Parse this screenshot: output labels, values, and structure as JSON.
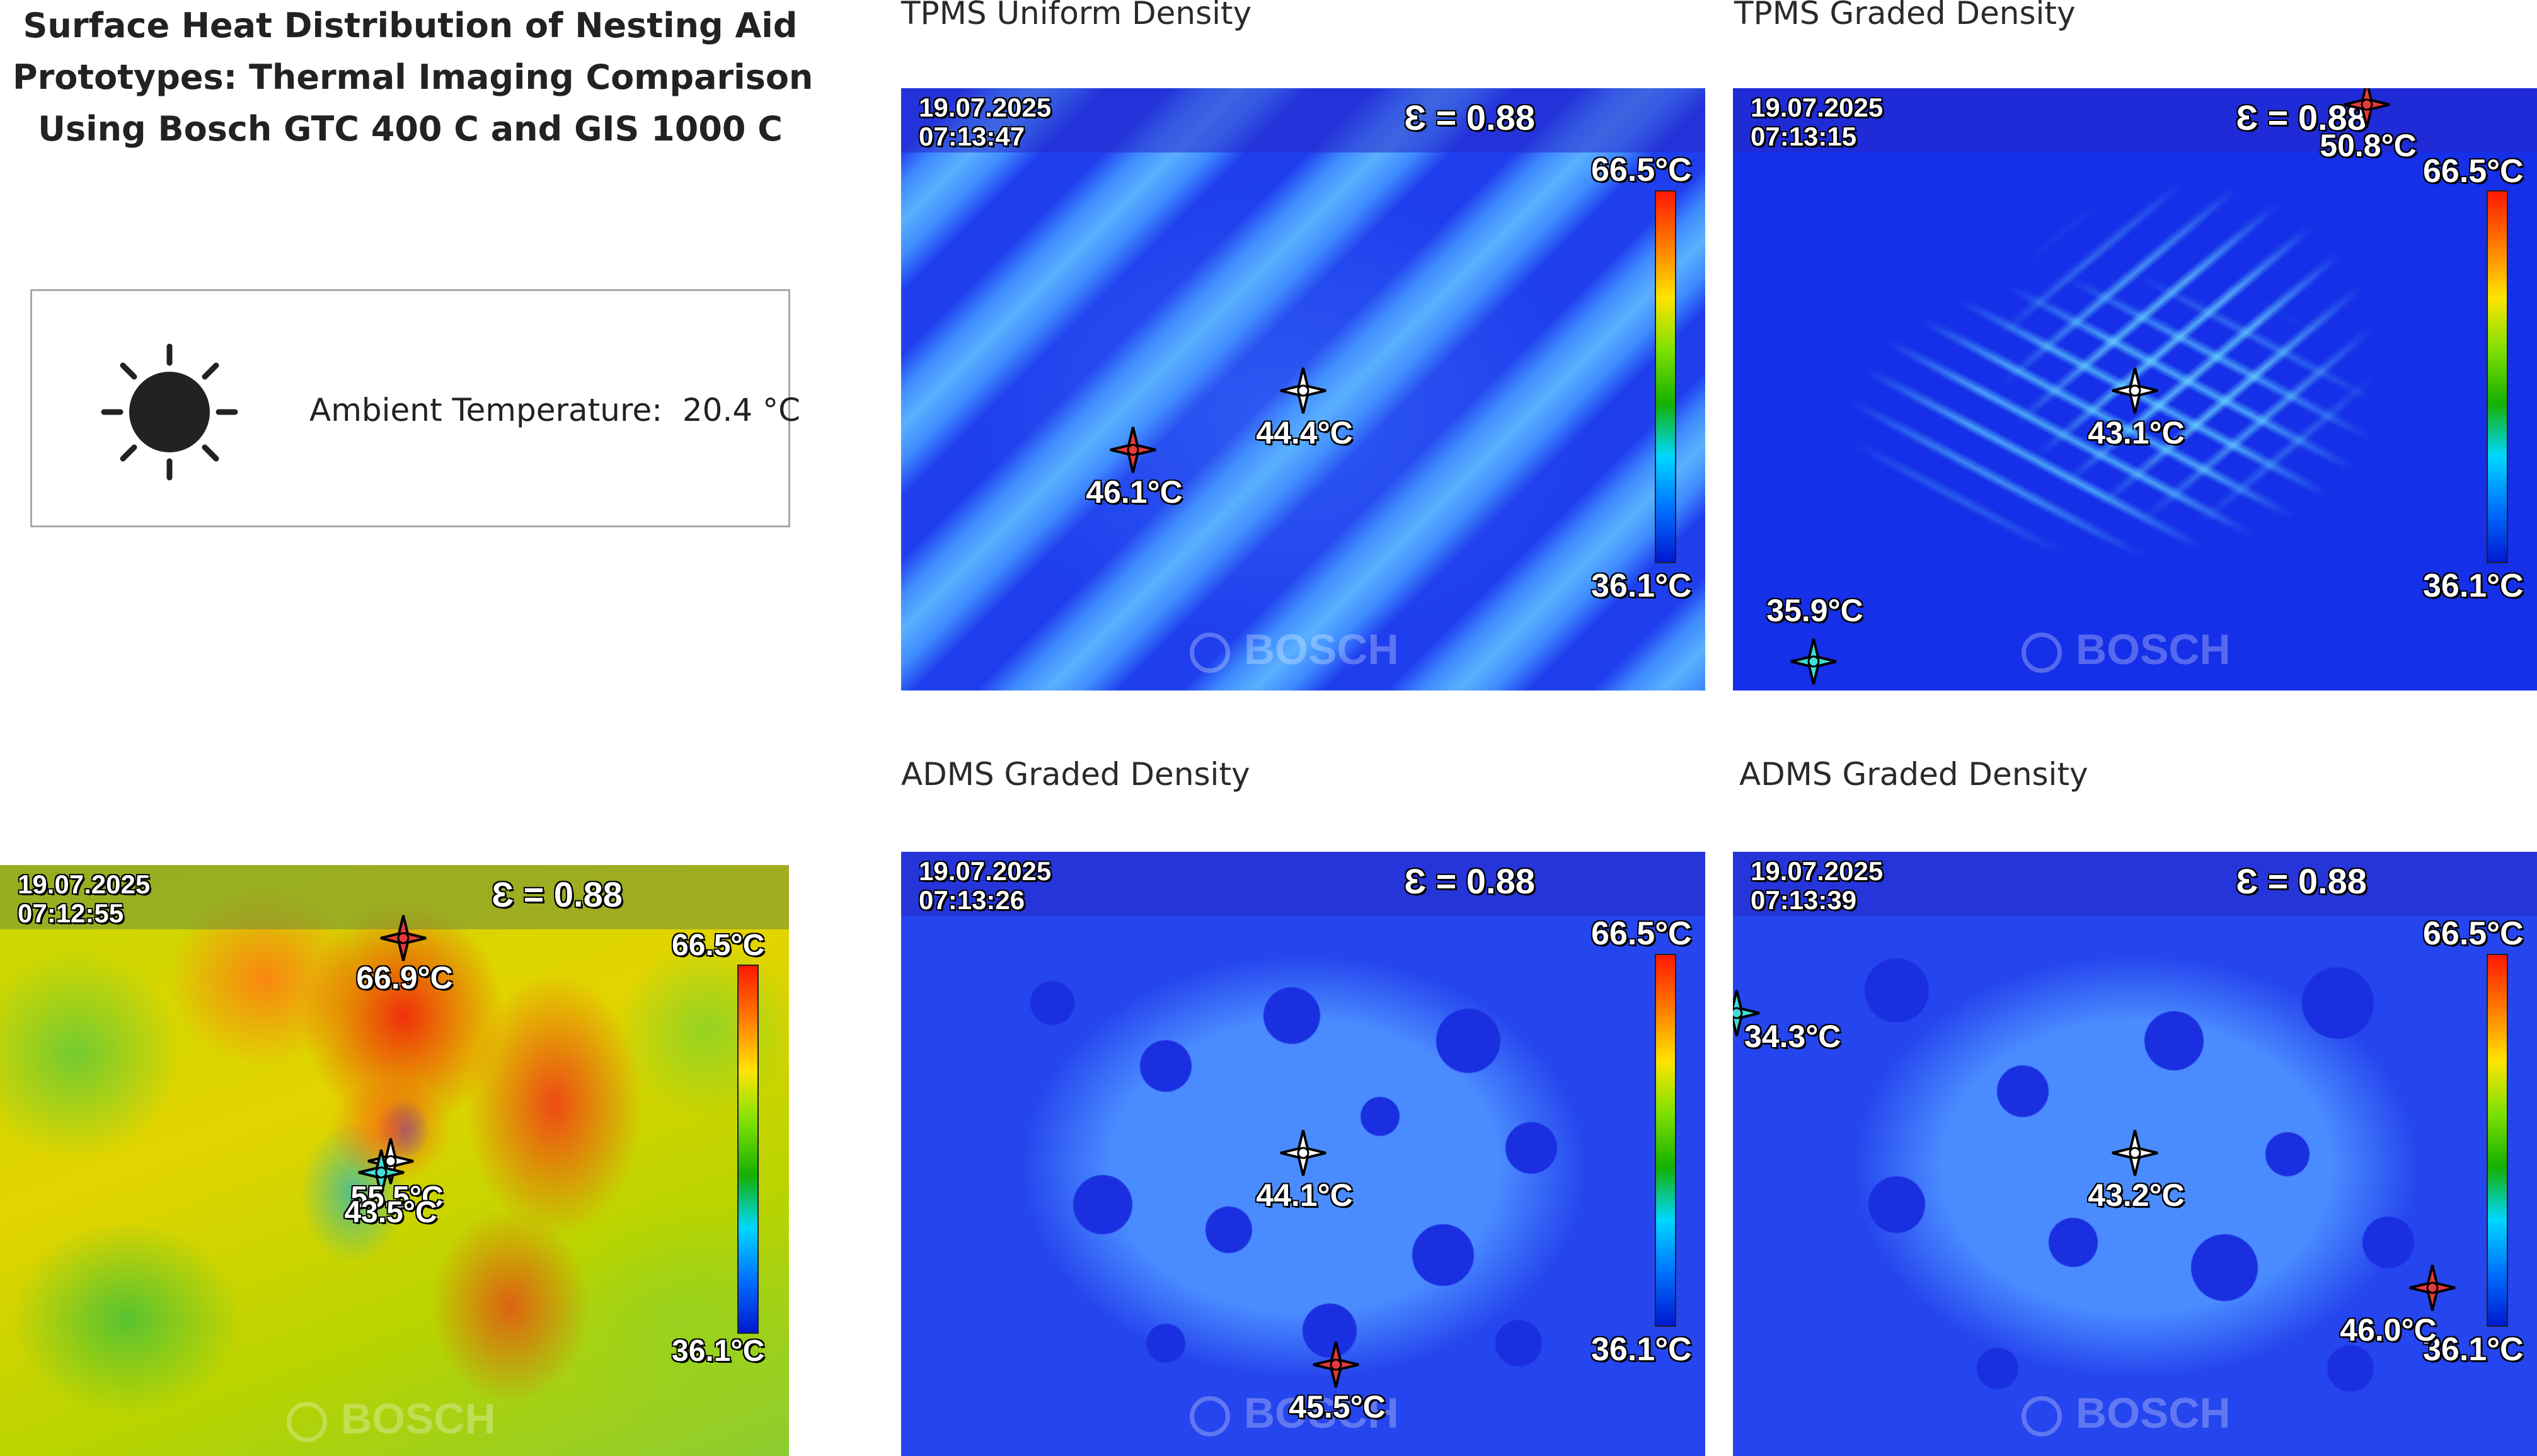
{
  "title": {
    "line1": "Surface Heat Distribution of Nesting Aid",
    "line2": "Prototypes: Thermal Imaging Comparison",
    "line3": "Using Bosch GTC 400 C and GIS 1000 C"
  },
  "ambient": {
    "icon": "sun-icon",
    "label": "Ambient Temperature:  20.4 °C"
  },
  "images": {
    "left": {
      "caption": "",
      "date": "19.07.2025",
      "time": "07:12:55",
      "emissivity": "Ɛ = 0.88",
      "scale_max": "66.5°C",
      "scale_min": "36.1°C",
      "hot_label": "66.9°C",
      "center_label": "55.5°C",
      "cold_label": "43.5°C",
      "watermark": "BOSCH"
    },
    "tpms_uniform": {
      "caption": "TPMS Uniform Density",
      "date": "19.07.2025",
      "time": "07:13:47",
      "emissivity": "Ɛ = 0.88",
      "scale_max": "66.5°C",
      "scale_min": "36.1°C",
      "center_label": "44.4°C",
      "hot_label": "46.1°C",
      "watermark": "BOSCH"
    },
    "tpms_graded": {
      "caption": "TPMS Graded Density",
      "date": "19.07.2025",
      "time": "07:13:15",
      "emissivity": "Ɛ = 0.88",
      "scale_max": "66.5°C",
      "scale_min": "36.1°C",
      "center_label": "43.1°C",
      "hot_label": "50.8°C",
      "cold_label": "35.9°C",
      "watermark": "BOSCH"
    },
    "adms_graded_1": {
      "caption": "ADMS Graded Density",
      "date": "19.07.2025",
      "time": "07:13:26",
      "emissivity": "Ɛ = 0.88",
      "scale_max": "66.5°C",
      "scale_min": "36.1°C",
      "center_label": "44.1°C",
      "hot_label": "45.5°C",
      "watermark": "BOSCH"
    },
    "adms_graded_2": {
      "caption": "ADMS Graded Density",
      "date": "19.07.2025",
      "time": "07:13:39",
      "emissivity": "Ɛ = 0.88",
      "scale_max": "66.5°C",
      "scale_min": "36.1°C",
      "center_label": "43.2°C",
      "hot_label": "46.0°C",
      "cold_label": "34.3°C",
      "watermark": "BOSCH"
    }
  },
  "colors": {
    "hot_marker": "#e83a3a",
    "center_marker": "#ffffff",
    "cold_marker": "#3ee0d8",
    "thermal_blue": "#1a3cf0"
  }
}
